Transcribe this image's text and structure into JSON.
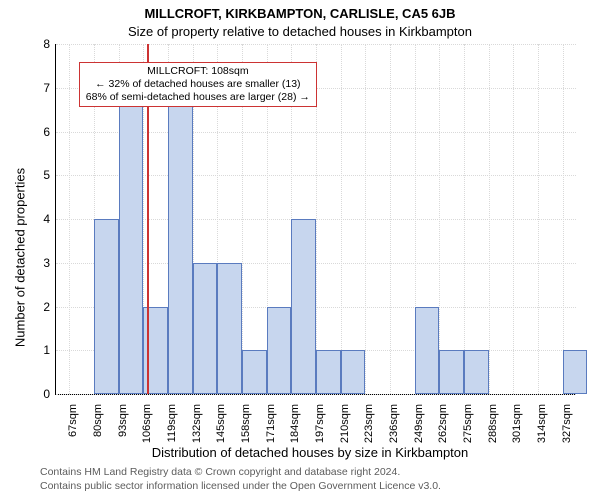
{
  "title_main": "MILLCROFT, KIRKBAMPTON, CARLISLE, CA5 6JB",
  "title_sub": "Size of property relative to detached houses in Kirkbampton",
  "ylabel": "Number of detached properties",
  "xlabel": "Distribution of detached houses by size in Kirkbampton",
  "chart": {
    "type": "histogram",
    "background_color": "#ffffff",
    "grid_color": "#d9d9d9",
    "axis_color": "#000000",
    "xlim_sqm": [
      60,
      334
    ],
    "ylim": [
      0,
      8
    ],
    "y_ticks": [
      0,
      1,
      2,
      3,
      4,
      5,
      6,
      7,
      8
    ],
    "x_ticks": [
      67,
      80,
      93,
      106,
      119,
      132,
      145,
      158,
      171,
      184,
      197,
      210,
      223,
      236,
      249,
      262,
      275,
      288,
      301,
      314,
      327
    ],
    "x_tick_suffix": "sqm",
    "bar_width_sqm": 13,
    "bar_fill": "#c7d6ee",
    "bar_border": "#5a7bbf",
    "bar_border_width": 1,
    "bars": [
      {
        "x_start": 67,
        "count": 0
      },
      {
        "x_start": 80,
        "count": 4
      },
      {
        "x_start": 93,
        "count": 7
      },
      {
        "x_start": 106,
        "count": 2
      },
      {
        "x_start": 119,
        "count": 7
      },
      {
        "x_start": 132,
        "count": 3
      },
      {
        "x_start": 145,
        "count": 3
      },
      {
        "x_start": 158,
        "count": 1
      },
      {
        "x_start": 171,
        "count": 2
      },
      {
        "x_start": 184,
        "count": 4
      },
      {
        "x_start": 197,
        "count": 1
      },
      {
        "x_start": 210,
        "count": 1
      },
      {
        "x_start": 223,
        "count": 0
      },
      {
        "x_start": 236,
        "count": 0
      },
      {
        "x_start": 249,
        "count": 2
      },
      {
        "x_start": 262,
        "count": 1
      },
      {
        "x_start": 275,
        "count": 1
      },
      {
        "x_start": 288,
        "count": 0
      },
      {
        "x_start": 301,
        "count": 0
      },
      {
        "x_start": 314,
        "count": 0
      },
      {
        "x_start": 327,
        "count": 1
      }
    ],
    "marker": {
      "x_sqm": 108,
      "color": "#cc3333",
      "width": 2
    },
    "annotation": {
      "lines": [
        "MILLCROFT: 108sqm",
        "← 32% of detached houses are smaller (13)",
        "68% of semi-detached houses are larger (28) →"
      ],
      "border_color": "#cc3333",
      "top_y_value": 7.6,
      "left_x_sqm": 72
    },
    "label_fontsize": 12,
    "title_fontsize": 13
  },
  "footer1": "Contains HM Land Registry data © Crown copyright and database right 2024.",
  "footer2": "Contains public sector information licensed under the Open Government Licence v3.0."
}
